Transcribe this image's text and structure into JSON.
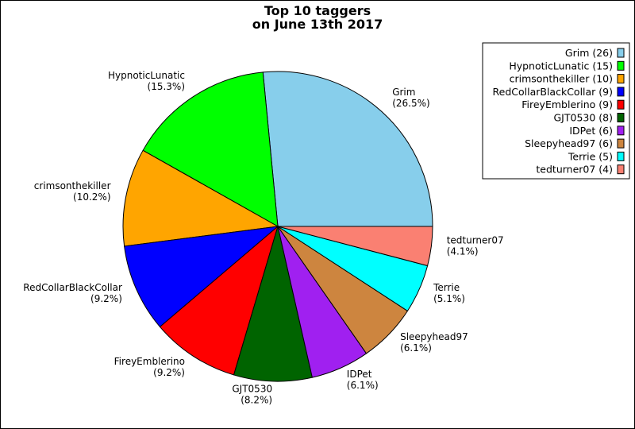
{
  "chart_data": {
    "type": "pie",
    "title": [
      "Top 10 taggers",
      "on June 13th 2017"
    ],
    "legend_position": "top-right",
    "slices": [
      {
        "name": "Grim",
        "value": 26,
        "percent": "26.5%",
        "legend_label": "Grim (26)",
        "color": "#87ceeb"
      },
      {
        "name": "HypnoticLunatic",
        "value": 15,
        "percent": "15.3%",
        "legend_label": "HypnoticLunatic (15)",
        "color": "#00ff00"
      },
      {
        "name": "crimsonthekiller",
        "value": 10,
        "percent": "10.2%",
        "legend_label": "crimsonthekiller (10)",
        "color": "#ffa500"
      },
      {
        "name": "RedCollarBlackCollar",
        "value": 9,
        "percent": "9.2%",
        "legend_label": "RedCollarBlackCollar (9)",
        "color": "#0000ff"
      },
      {
        "name": "FireyEmblerino",
        "value": 9,
        "percent": "9.2%",
        "legend_label": "FireyEmblerino (9)",
        "color": "#ff0000"
      },
      {
        "name": "GJT0530",
        "value": 8,
        "percent": "8.2%",
        "legend_label": "GJT0530 (8)",
        "color": "#006400"
      },
      {
        "name": "IDPet",
        "value": 6,
        "percent": "6.1%",
        "legend_label": "IDPet (6)",
        "color": "#a020f0"
      },
      {
        "name": "Sleepyhead97",
        "value": 6,
        "percent": "6.1%",
        "legend_label": "Sleepyhead97 (6)",
        "color": "#cd853f"
      },
      {
        "name": "Terrie",
        "value": 5,
        "percent": "5.1%",
        "legend_label": "Terrie (5)",
        "color": "#00ffff"
      },
      {
        "name": "tedturner07",
        "value": 4,
        "percent": "4.1%",
        "legend_label": "tedturner07 (4)",
        "color": "#fa8072"
      }
    ]
  }
}
